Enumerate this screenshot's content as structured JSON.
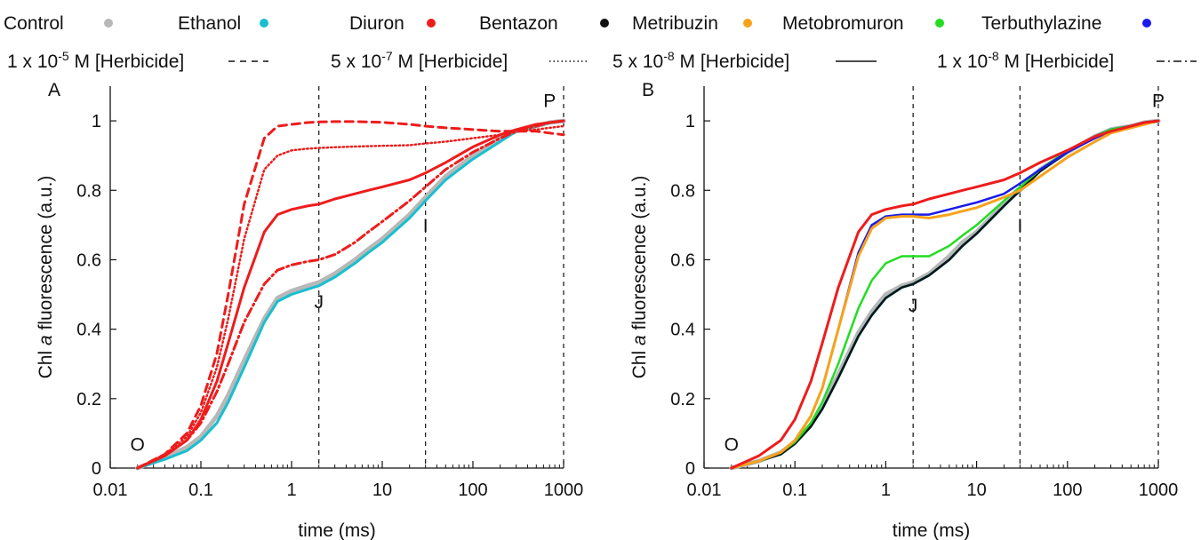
{
  "legend": {
    "series": [
      {
        "label": "Control",
        "color": "#b8b8b8"
      },
      {
        "label": "Ethanol",
        "color": "#17bfd0"
      },
      {
        "label": "Diuron",
        "color": "#ee1c1c"
      },
      {
        "label": "Bentazon",
        "color": "#111111"
      },
      {
        "label": "Metribuzin",
        "color": "#f7a21b"
      },
      {
        "label": "Metobromuron",
        "color": "#22dd22"
      },
      {
        "label": "Terbuthylazine",
        "color": "#1a1aee"
      }
    ],
    "concentrations": [
      {
        "coef": "1 x 10",
        "exp": "-5",
        "suffix": " M [Herbicide]",
        "dash": "dashed"
      },
      {
        "coef": "5 x 10",
        "exp": "-7",
        "suffix": " M [Herbicide]",
        "dash": "dotted"
      },
      {
        "coef": "5 x 10",
        "exp": "-8",
        "suffix": " M [Herbicide]",
        "dash": "solid"
      },
      {
        "coef": "1 x 10",
        "exp": "-8",
        "suffix": " M [Herbicide]",
        "dash": "dash-dot"
      }
    ]
  },
  "chart_data": [
    {
      "type": "line",
      "panel_label": "A",
      "xlabel": "time (ms)",
      "ylabel_prefix": "Chl ",
      "ylabel_italic": "a",
      "ylabel_suffix": " fluorescence (a.u.)",
      "x_scale": "log",
      "xlim": [
        0.01,
        1000
      ],
      "ylim": [
        0,
        1.1
      ],
      "x_ticks": [
        0.01,
        0.1,
        1,
        10,
        100,
        1000
      ],
      "x_tick_labels": [
        "0.01",
        "0.1",
        "1",
        "10",
        "100",
        "1000"
      ],
      "y_ticks": [
        0,
        0.2,
        0.4,
        0.6,
        0.8,
        1
      ],
      "y_tick_labels": [
        "0",
        "0.2",
        "0.4",
        "0.6",
        "0.8",
        "1"
      ],
      "grid": false,
      "vlines": [
        2,
        30,
        1000
      ],
      "annotations": [
        {
          "text": "O",
          "x": 0.02,
          "y": 0.05
        },
        {
          "text": "J",
          "x": 2,
          "y": 0.46
        },
        {
          "text": "I",
          "x": 30,
          "y": 0.68
        },
        {
          "text": "P",
          "x": 700,
          "y": 1.04
        }
      ],
      "x": [
        0.02,
        0.04,
        0.07,
        0.1,
        0.15,
        0.2,
        0.3,
        0.5,
        0.7,
        1,
        1.5,
        2,
        3,
        5,
        7,
        10,
        20,
        30,
        50,
        100,
        200,
        300,
        500,
        700,
        1000
      ],
      "series": [
        {
          "name": "Control",
          "color": "#b8b8b8",
          "dash": "solid",
          "width": 5,
          "values": [
            0,
            0.03,
            0.06,
            0.09,
            0.15,
            0.21,
            0.31,
            0.43,
            0.49,
            0.51,
            0.525,
            0.535,
            0.56,
            0.6,
            0.63,
            0.66,
            0.73,
            0.78,
            0.84,
            0.9,
            0.95,
            0.97,
            0.985,
            0.995,
            1
          ]
        },
        {
          "name": "Ethanol",
          "color": "#17bfd0",
          "dash": "solid",
          "width": 3,
          "values": [
            0,
            0.025,
            0.05,
            0.08,
            0.13,
            0.19,
            0.29,
            0.42,
            0.48,
            0.5,
            0.515,
            0.525,
            0.55,
            0.59,
            0.62,
            0.65,
            0.72,
            0.77,
            0.83,
            0.89,
            0.94,
            0.97,
            0.985,
            0.995,
            1
          ]
        },
        {
          "name": "Diuron",
          "color": "#ee1c1c",
          "dash": "dashed",
          "width": 3,
          "values": [
            0,
            0.04,
            0.1,
            0.18,
            0.33,
            0.5,
            0.76,
            0.95,
            0.985,
            0.99,
            0.995,
            0.997,
            0.998,
            0.998,
            0.997,
            0.996,
            0.99,
            0.985,
            0.98,
            0.975,
            0.97,
            0.97,
            0.97,
            0.965,
            0.96
          ]
        },
        {
          "name": "Diuron",
          "color": "#ee1c1c",
          "dash": "dotted",
          "width": 2.5,
          "values": [
            0,
            0.04,
            0.09,
            0.16,
            0.29,
            0.43,
            0.66,
            0.86,
            0.9,
            0.915,
            0.92,
            0.922,
            0.924,
            0.926,
            0.927,
            0.928,
            0.93,
            0.935,
            0.94,
            0.95,
            0.96,
            0.97,
            0.975,
            0.98,
            0.985
          ]
        },
        {
          "name": "Diuron",
          "color": "#ee1c1c",
          "dash": "solid",
          "width": 3,
          "values": [
            0,
            0.035,
            0.08,
            0.14,
            0.25,
            0.36,
            0.52,
            0.68,
            0.73,
            0.745,
            0.755,
            0.76,
            0.775,
            0.79,
            0.8,
            0.81,
            0.83,
            0.85,
            0.88,
            0.925,
            0.96,
            0.975,
            0.99,
            0.995,
            1
          ]
        },
        {
          "name": "Diuron",
          "color": "#ee1c1c",
          "dash": "dash-dot",
          "width": 3,
          "values": [
            0,
            0.035,
            0.08,
            0.13,
            0.22,
            0.3,
            0.42,
            0.53,
            0.57,
            0.585,
            0.595,
            0.6,
            0.615,
            0.65,
            0.68,
            0.71,
            0.77,
            0.81,
            0.86,
            0.91,
            0.95,
            0.97,
            0.985,
            0.995,
            1
          ]
        }
      ]
    },
    {
      "type": "line",
      "panel_label": "B",
      "xlabel": "time (ms)",
      "ylabel_prefix": "Chl ",
      "ylabel_italic": "a",
      "ylabel_suffix": " fluorescence (a.u.)",
      "x_scale": "log",
      "xlim": [
        0.01,
        1000
      ],
      "ylim": [
        0,
        1.1
      ],
      "x_ticks": [
        0.01,
        0.1,
        1,
        10,
        100,
        1000
      ],
      "x_tick_labels": [
        "0.01",
        "0.1",
        "1",
        "10",
        "100",
        "1000"
      ],
      "y_ticks": [
        0,
        0.2,
        0.4,
        0.6,
        0.8,
        1
      ],
      "y_tick_labels": [
        "0",
        "0.2",
        "0.4",
        "0.6",
        "0.8",
        "1"
      ],
      "grid": false,
      "vlines": [
        2,
        30,
        1000
      ],
      "annotations": [
        {
          "text": "O",
          "x": 0.02,
          "y": 0.05
        },
        {
          "text": "J",
          "x": 2,
          "y": 0.45
        },
        {
          "text": "I",
          "x": 30,
          "y": 0.68
        },
        {
          "text": "P",
          "x": 1000,
          "y": 1.04
        }
      ],
      "x": [
        0.02,
        0.04,
        0.07,
        0.1,
        0.15,
        0.2,
        0.3,
        0.5,
        0.7,
        1,
        1.5,
        2,
        3,
        5,
        7,
        10,
        20,
        30,
        50,
        100,
        200,
        300,
        500,
        700,
        1000
      ],
      "series": [
        {
          "name": "Control",
          "color": "#b8b8b8",
          "dash": "solid",
          "width": 5,
          "values": [
            0,
            0.02,
            0.045,
            0.075,
            0.125,
            0.18,
            0.27,
            0.39,
            0.45,
            0.5,
            0.525,
            0.535,
            0.56,
            0.61,
            0.65,
            0.68,
            0.76,
            0.8,
            0.86,
            0.91,
            0.955,
            0.975,
            0.985,
            0.995,
            1
          ]
        },
        {
          "name": "Ethanol",
          "color": "#17bfd0",
          "dash": "solid",
          "width": 3,
          "values": [
            0,
            0.02,
            0.04,
            0.07,
            0.12,
            0.17,
            0.26,
            0.38,
            0.44,
            0.49,
            0.52,
            0.53,
            0.555,
            0.6,
            0.64,
            0.675,
            0.755,
            0.8,
            0.855,
            0.91,
            0.955,
            0.975,
            0.985,
            0.995,
            1
          ]
        },
        {
          "name": "Bentazon",
          "color": "#111111",
          "dash": "solid",
          "width": 2.5,
          "values": [
            0,
            0.02,
            0.04,
            0.07,
            0.12,
            0.17,
            0.26,
            0.38,
            0.44,
            0.49,
            0.52,
            0.53,
            0.555,
            0.6,
            0.64,
            0.675,
            0.755,
            0.8,
            0.855,
            0.91,
            0.955,
            0.975,
            0.985,
            0.995,
            1
          ]
        },
        {
          "name": "Metobromuron",
          "color": "#22dd22",
          "dash": "solid",
          "width": 2.5,
          "values": [
            0,
            0.02,
            0.045,
            0.075,
            0.13,
            0.19,
            0.3,
            0.46,
            0.54,
            0.59,
            0.61,
            0.61,
            0.61,
            0.64,
            0.67,
            0.7,
            0.77,
            0.81,
            0.86,
            0.915,
            0.955,
            0.975,
            0.985,
            0.995,
            1
          ]
        },
        {
          "name": "Terbuthylazine",
          "color": "#1a1aee",
          "dash": "solid",
          "width": 2.5,
          "values": [
            0,
            0.02,
            0.045,
            0.08,
            0.15,
            0.23,
            0.4,
            0.62,
            0.7,
            0.725,
            0.73,
            0.73,
            0.73,
            0.745,
            0.755,
            0.765,
            0.79,
            0.82,
            0.86,
            0.91,
            0.95,
            0.97,
            0.985,
            0.995,
            1
          ]
        },
        {
          "name": "Metribuzin",
          "color": "#f7a21b",
          "dash": "solid",
          "width": 3,
          "values": [
            0,
            0.02,
            0.045,
            0.08,
            0.15,
            0.23,
            0.4,
            0.61,
            0.69,
            0.72,
            0.725,
            0.725,
            0.72,
            0.73,
            0.74,
            0.75,
            0.78,
            0.8,
            0.84,
            0.895,
            0.94,
            0.965,
            0.98,
            0.99,
            1
          ]
        },
        {
          "name": "Diuron",
          "color": "#ee1c1c",
          "dash": "solid",
          "width": 3,
          "values": [
            0,
            0.035,
            0.08,
            0.14,
            0.25,
            0.36,
            0.52,
            0.68,
            0.73,
            0.745,
            0.755,
            0.76,
            0.775,
            0.79,
            0.8,
            0.81,
            0.83,
            0.85,
            0.88,
            0.915,
            0.955,
            0.97,
            0.985,
            0.995,
            1
          ]
        }
      ]
    }
  ]
}
